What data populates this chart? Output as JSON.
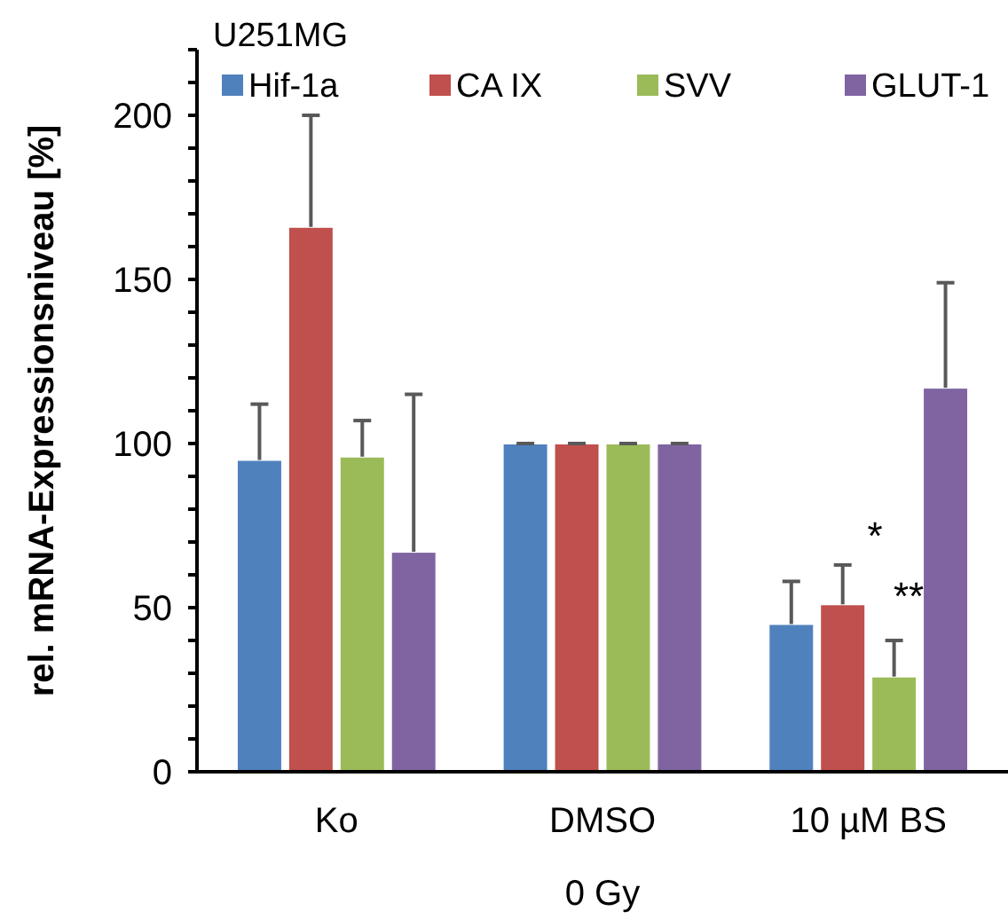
{
  "chart_data": {
    "type": "bar",
    "title": "U251MG",
    "xlabel": "0 Gy",
    "ylabel": "rel. mRNA-Expressionsniveau [%]",
    "categories": [
      "Ko",
      "DMSO",
      "10 µM BS"
    ],
    "series": [
      {
        "name": "Hif-1a",
        "color": "#4f81bd",
        "values": [
          95,
          100,
          45
        ],
        "errors": [
          17,
          0,
          13
        ]
      },
      {
        "name": "CA IX",
        "color": "#c0504d",
        "values": [
          166,
          100,
          51
        ],
        "errors": [
          34,
          0,
          12
        ]
      },
      {
        "name": "SVV",
        "color": "#9bbb59",
        "values": [
          96,
          100,
          29
        ],
        "errors": [
          11,
          0,
          11
        ]
      },
      {
        "name": "GLUT-1",
        "color": "#8064a2",
        "values": [
          67,
          100,
          117
        ],
        "errors": [
          48,
          0,
          32
        ]
      }
    ],
    "ylim": [
      0,
      220
    ],
    "yticks": [
      0,
      {
        "value": 10,
        "label": null
      },
      {
        "value": 20,
        "label": null
      },
      {
        "value": 30,
        "label": null
      },
      {
        "value": 40,
        "label": null
      },
      50,
      {
        "value": 60,
        "label": null
      },
      {
        "value": 70,
        "label": null
      },
      {
        "value": 80,
        "label": null
      },
      {
        "value": 90,
        "label": null
      },
      100,
      {
        "value": 110,
        "label": null
      },
      {
        "value": 120,
        "label": null
      },
      {
        "value": 130,
        "label": null
      },
      {
        "value": 140,
        "label": null
      },
      150,
      {
        "value": 160,
        "label": null
      },
      {
        "value": 170,
        "label": null
      },
      {
        "value": 180,
        "label": null
      },
      {
        "value": 190,
        "label": null
      },
      200,
      {
        "value": 210,
        "label": null
      },
      {
        "value": 220,
        "label": null
      }
    ],
    "annotations": [
      "*",
      "**"
    ],
    "legend": "top",
    "grid": false
  }
}
